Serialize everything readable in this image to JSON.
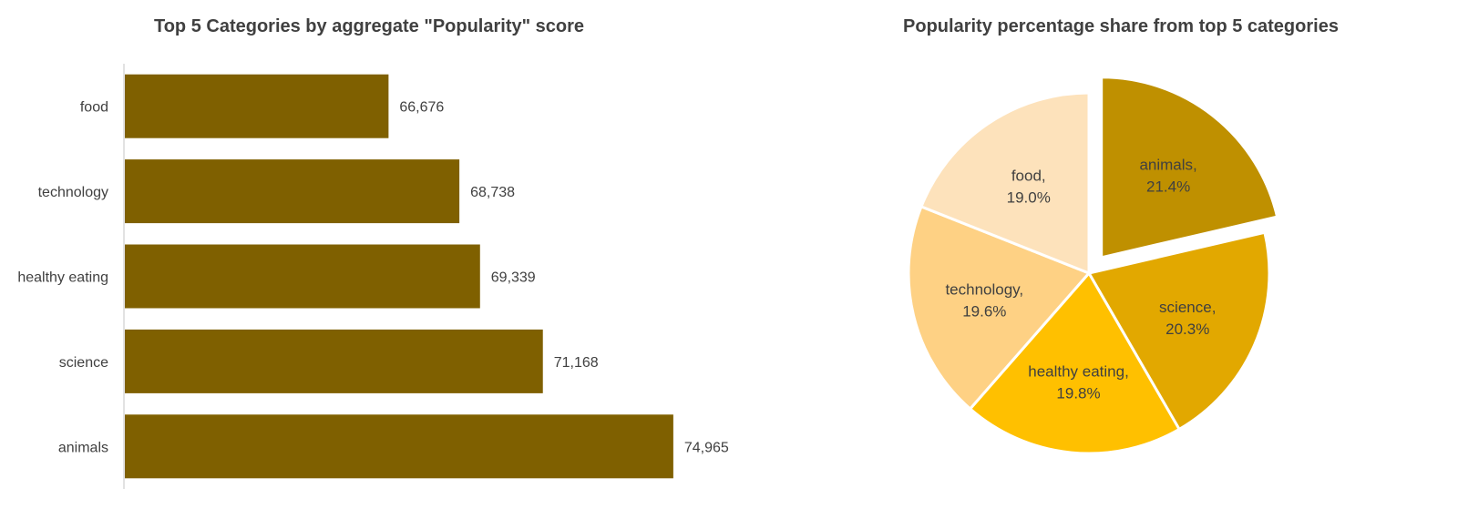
{
  "chart_data": [
    {
      "type": "bar",
      "orientation": "horizontal",
      "title": "Top 5 Categories by aggregate \"Popularity\" score",
      "categories": [
        "food",
        "technology",
        "healthy eating",
        "science",
        "animals"
      ],
      "values": [
        66676,
        68738,
        69339,
        71168,
        74965
      ],
      "data_labels": [
        "66,676",
        "68,738",
        "69,339",
        "71,168",
        "74,965"
      ],
      "xlim": [
        59000,
        77000
      ],
      "color": "#7f6000",
      "grid": false,
      "legend": "none"
    },
    {
      "type": "pie",
      "title": "Popularity percentage share from top 5 categories",
      "slices": [
        {
          "name": "animals",
          "value": 21.4,
          "label": "animals,",
          "pct": "21.4%",
          "color": "#bf9000",
          "exploded": true
        },
        {
          "name": "science",
          "value": 20.3,
          "label": "science,",
          "pct": "20.3%",
          "color": "#e2a800",
          "exploded": false
        },
        {
          "name": "healthy eating",
          "value": 19.8,
          "label": "healthy eating,",
          "pct": "19.8%",
          "color": "#ffc000",
          "exploded": false
        },
        {
          "name": "technology",
          "value": 19.6,
          "label": "technology,",
          "pct": "19.6%",
          "color": "#fed184",
          "exploded": false
        },
        {
          "name": "food",
          "value": 19.0,
          "label": "food,",
          "pct": "19.0%",
          "color": "#fde2bb",
          "exploded": false
        }
      ],
      "legend": "none"
    }
  ]
}
